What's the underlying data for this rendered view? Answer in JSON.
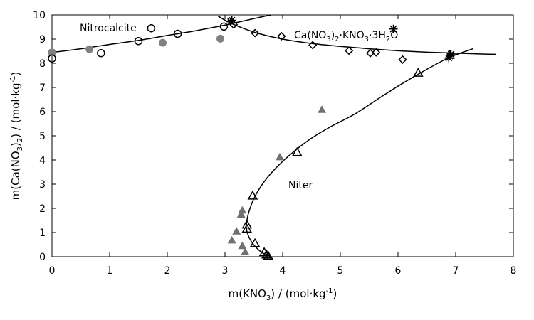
{
  "chart_data": {
    "type": "scatter",
    "title": "",
    "xlim": [
      0,
      8
    ],
    "ylim": [
      0,
      10
    ],
    "x_ticks": [
      0,
      1,
      2,
      3,
      4,
      5,
      6,
      7,
      8
    ],
    "y_ticks": [
      0,
      1,
      2,
      3,
      4,
      5,
      6,
      7,
      8,
      9,
      10
    ],
    "xlabel": {
      "base": "m(KNO",
      "sub": "3",
      "mid": ") / (mol",
      "dot": "·",
      "unit": "kg",
      "sup": "-1",
      "end": ")"
    },
    "ylabel": {
      "base": "m(Ca(NO",
      "sub1": "3",
      "mid1": ")",
      "sub2": "2",
      "mid2": ") / (mol",
      "dot": "·",
      "unit": "kg",
      "sup": "-1",
      "end": ")"
    },
    "annotations": {
      "nitrocalcite": "Nitrocalcite",
      "niter": "Niter",
      "double_salt": {
        "p1": "Ca(NO",
        "s1": "3",
        "p2": ")",
        "s2": "2",
        "p3": "·KNO",
        "s3": "3",
        "p4": "·3H",
        "s4": "2",
        "p5": "O"
      }
    },
    "grid": false,
    "legend": "none",
    "series": [
      {
        "marker": "filled-circle",
        "color": "#808080",
        "points": [
          [
            0.0,
            8.45
          ],
          [
            0.65,
            8.58
          ],
          [
            1.92,
            8.85
          ],
          [
            2.92,
            9.02
          ]
        ]
      },
      {
        "marker": "open-circle",
        "color": "#000000",
        "points": [
          [
            0.0,
            8.2
          ],
          [
            0.85,
            8.42
          ],
          [
            1.5,
            8.92
          ],
          [
            1.72,
            9.45
          ],
          [
            2.18,
            9.22
          ],
          [
            2.98,
            9.52
          ]
        ]
      },
      {
        "marker": "open-diamond",
        "color": "#000000",
        "points": [
          [
            3.15,
            9.6
          ],
          [
            3.52,
            9.25
          ],
          [
            3.98,
            9.12
          ],
          [
            4.52,
            8.75
          ],
          [
            5.15,
            8.52
          ],
          [
            5.52,
            8.42
          ],
          [
            5.62,
            8.45
          ],
          [
            6.08,
            8.15
          ]
        ]
      },
      {
        "marker": "asterisk",
        "color": "#000000",
        "points": [
          [
            3.1,
            9.72
          ],
          [
            3.12,
            9.78
          ],
          [
            5.92,
            9.42
          ],
          [
            6.88,
            8.22
          ],
          [
            6.92,
            8.38
          ],
          [
            6.9,
            8.3
          ]
        ]
      },
      {
        "marker": "open-triangle",
        "color": "#000000",
        "points": [
          [
            3.38,
            1.15
          ],
          [
            3.38,
            1.32
          ],
          [
            3.48,
            2.52
          ],
          [
            3.52,
            0.55
          ],
          [
            3.68,
            0.18
          ],
          [
            3.72,
            0.08
          ],
          [
            3.75,
            0.03
          ],
          [
            4.25,
            4.32
          ],
          [
            6.35,
            7.6
          ],
          [
            6.9,
            8.35
          ]
        ]
      },
      {
        "marker": "filled-triangle",
        "color": "#707070",
        "points": [
          [
            3.12,
            0.68
          ],
          [
            3.2,
            1.05
          ],
          [
            3.28,
            1.75
          ],
          [
            3.3,
            1.92
          ],
          [
            3.3,
            0.45
          ],
          [
            3.35,
            0.2
          ],
          [
            3.95,
            4.12
          ],
          [
            4.68,
            6.08
          ]
        ]
      }
    ],
    "curves": [
      {
        "name": "",
        "points": [
          [
            0.0,
            8.45
          ],
          [
            0.5,
            8.6
          ],
          [
            1.0,
            8.78
          ],
          [
            1.5,
            8.95
          ],
          [
            2.0,
            9.15
          ],
          [
            2.5,
            9.35
          ],
          [
            3.0,
            9.58
          ],
          [
            3.3,
            9.74
          ],
          [
            3.45,
            9.82
          ],
          [
            3.6,
            9.9
          ],
          [
            3.8,
            10.0
          ]
        ]
      },
      {
        "name": "",
        "points": [
          [
            2.88,
            9.95
          ],
          [
            3.05,
            9.72
          ],
          [
            3.3,
            9.46
          ],
          [
            3.6,
            9.22
          ],
          [
            4.0,
            9.0
          ],
          [
            4.5,
            8.82
          ],
          [
            5.0,
            8.7
          ],
          [
            5.5,
            8.6
          ],
          [
            6.0,
            8.52
          ],
          [
            6.5,
            8.46
          ],
          [
            7.0,
            8.42
          ],
          [
            7.5,
            8.38
          ],
          [
            7.7,
            8.37
          ]
        ]
      },
      {
        "name": "",
        "points": [
          [
            3.75,
            0.0
          ],
          [
            3.6,
            0.25
          ],
          [
            3.48,
            0.55
          ],
          [
            3.4,
            0.9
          ],
          [
            3.37,
            1.2
          ],
          [
            3.38,
            1.5
          ],
          [
            3.42,
            1.9
          ],
          [
            3.5,
            2.4
          ],
          [
            3.62,
            2.9
          ],
          [
            3.78,
            3.4
          ],
          [
            3.98,
            3.9
          ],
          [
            4.22,
            4.4
          ],
          [
            4.5,
            4.9
          ],
          [
            4.85,
            5.4
          ],
          [
            5.25,
            5.9
          ],
          [
            5.7,
            6.6
          ],
          [
            6.1,
            7.2
          ],
          [
            6.5,
            7.75
          ],
          [
            6.9,
            8.25
          ],
          [
            7.3,
            8.6
          ]
        ]
      }
    ]
  }
}
